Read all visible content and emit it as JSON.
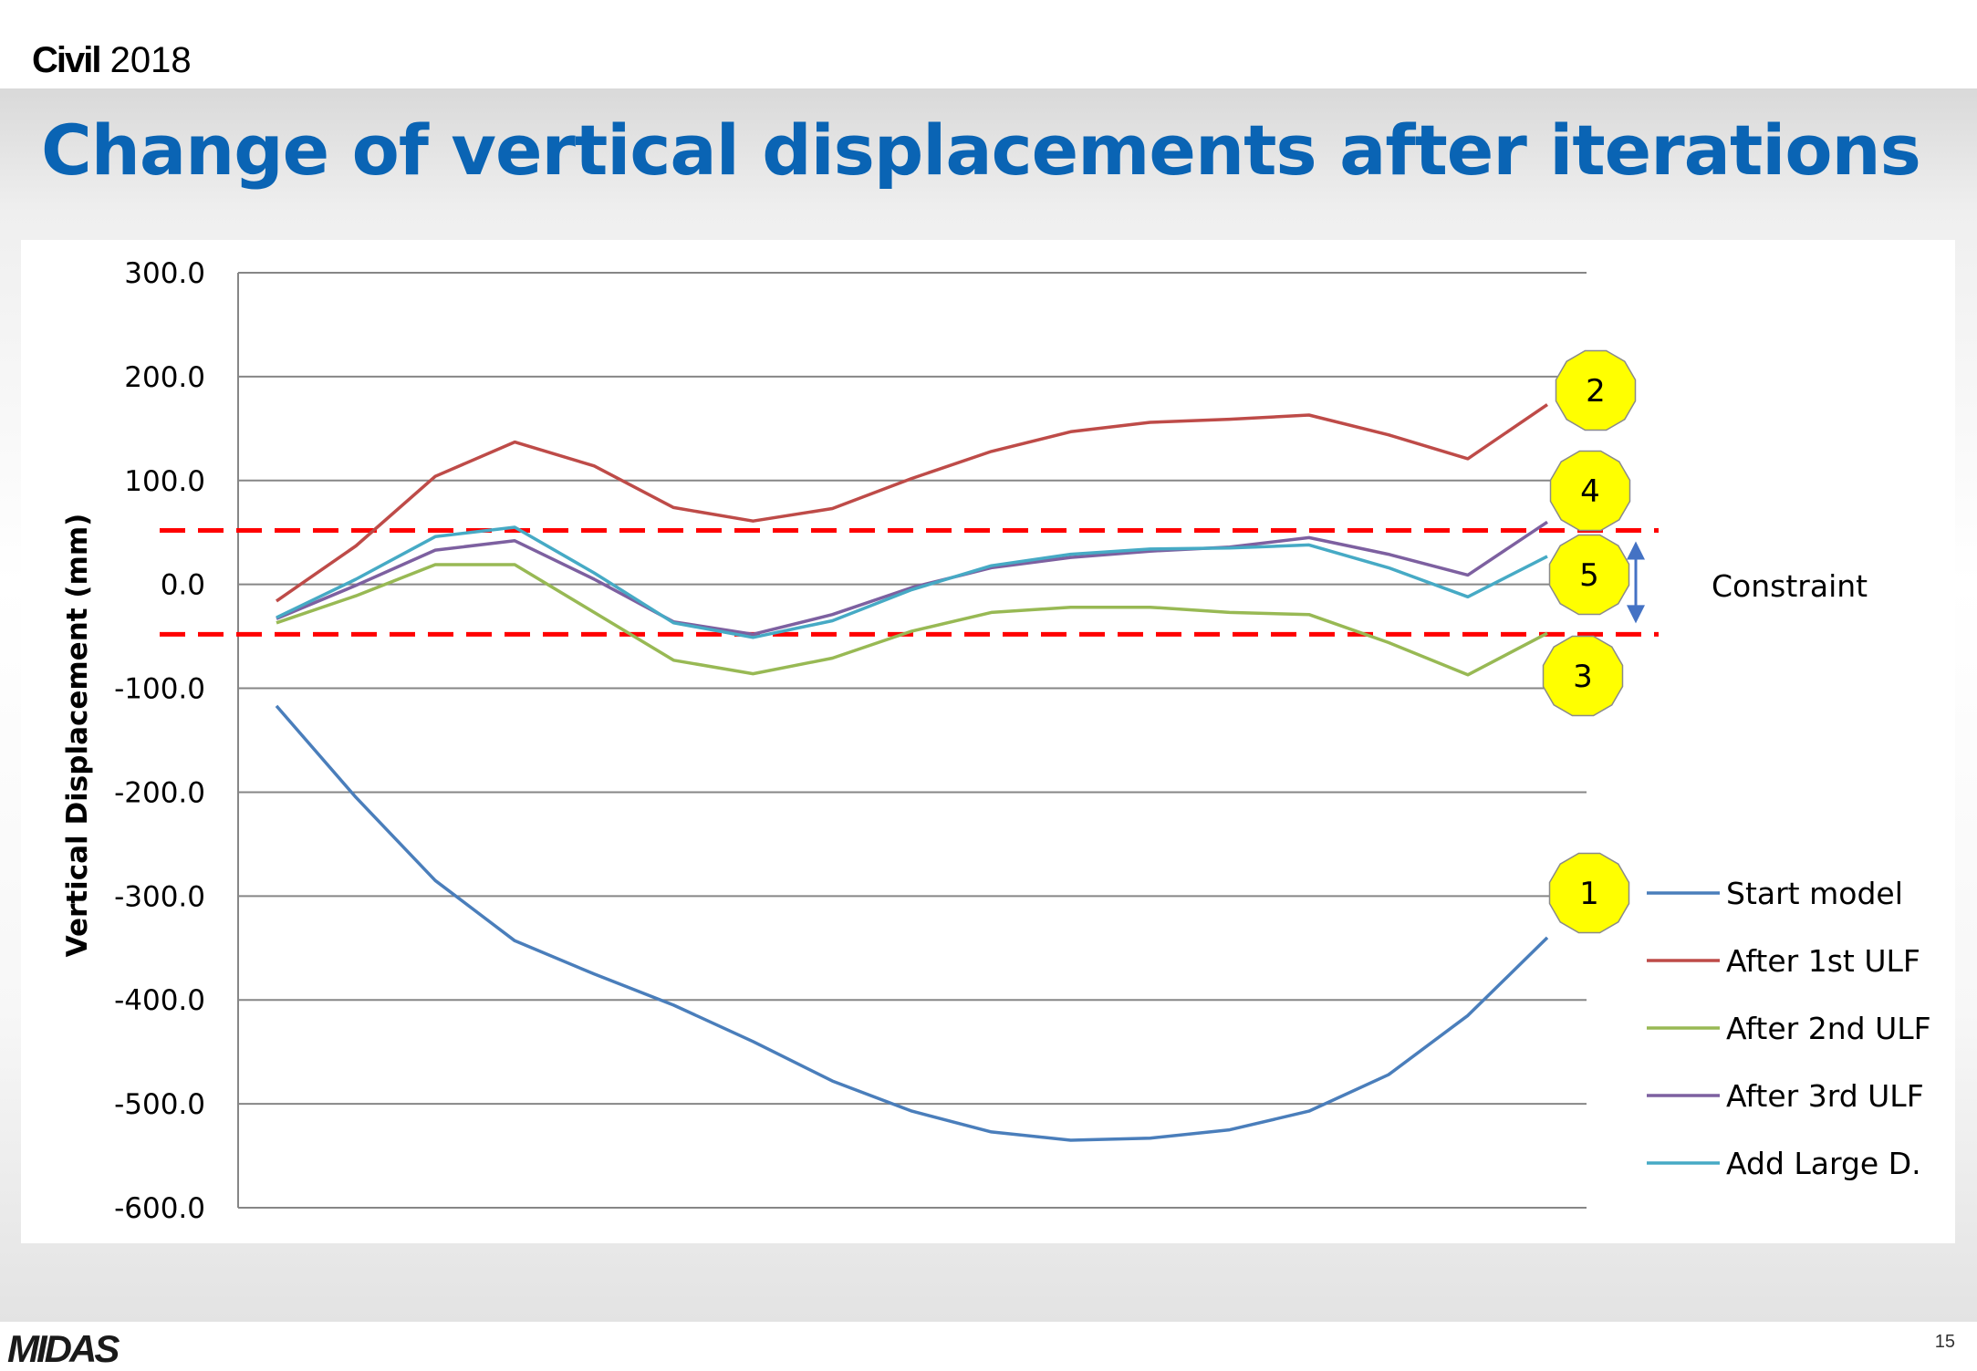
{
  "brand": {
    "title_bold": "Civil",
    "title_rest": "2018",
    "logo": "MIDAS"
  },
  "slide": {
    "title": "Change of vertical displacements after iterations",
    "page_number": "15"
  },
  "chart_data": {
    "type": "line",
    "title": "",
    "xlabel": "",
    "ylabel": "Vertical Displacement (mm)",
    "ylim": [
      -600,
      300
    ],
    "yticks": [
      "300.0",
      "200.0",
      "100.0",
      "0.0",
      "-100.0",
      "-200.0",
      "-300.0",
      "-400.0",
      "-500.0",
      "-600.0"
    ],
    "grid": true,
    "legend_position": "bottom-right",
    "x": [
      1,
      2,
      3,
      4,
      5,
      6,
      7,
      8,
      9,
      10,
      11,
      12,
      13,
      14,
      15,
      16,
      17
    ],
    "series": [
      {
        "name": "Start model",
        "color": "#4a7ebb",
        "values": [
          -117,
          -205,
          -285,
          -343,
          -375,
          -405,
          -440,
          -478,
          -507,
          -527,
          -535,
          -533,
          -525,
          -507,
          -472,
          -415,
          -340
        ]
      },
      {
        "name": "After 1st ULF",
        "color": "#be4b48",
        "values": [
          -16,
          37,
          104,
          137,
          114,
          74,
          61,
          73,
          102,
          128,
          147,
          156,
          159,
          163,
          144,
          121,
          173
        ]
      },
      {
        "name": "After 2nd ULF",
        "color": "#98b954",
        "values": [
          -37,
          -11,
          19,
          19,
          -27,
          -73,
          -86,
          -71,
          -45,
          -27,
          -22,
          -22,
          -27,
          -29,
          -56,
          -87,
          -47
        ]
      },
      {
        "name": "After 3rd ULF",
        "color": "#7d60a0",
        "values": [
          -33,
          -1,
          33,
          42,
          5,
          -36,
          -48,
          -29,
          -3,
          16,
          26,
          32,
          36,
          45,
          29,
          9,
          60
        ]
      },
      {
        "name": "Add Large D.",
        "color": "#46aac5",
        "values": [
          -32,
          5,
          46,
          55,
          11,
          -37,
          -51,
          -35,
          -5,
          18,
          29,
          34,
          35,
          38,
          16,
          -12,
          27
        ]
      }
    ],
    "constraint": {
      "label": "Constraint",
      "upper": 52,
      "lower": -48,
      "color": "#ff0000",
      "arrow_color": "#4472c4"
    },
    "badges": [
      {
        "label": "1",
        "series": "Start model"
      },
      {
        "label": "2",
        "series": "After 1st ULF"
      },
      {
        "label": "3",
        "series": "After 2nd ULF"
      },
      {
        "label": "4",
        "series": "After 3rd ULF"
      },
      {
        "label": "5",
        "series": "Add Large D."
      }
    ],
    "badge_color": "#ffff00"
  }
}
